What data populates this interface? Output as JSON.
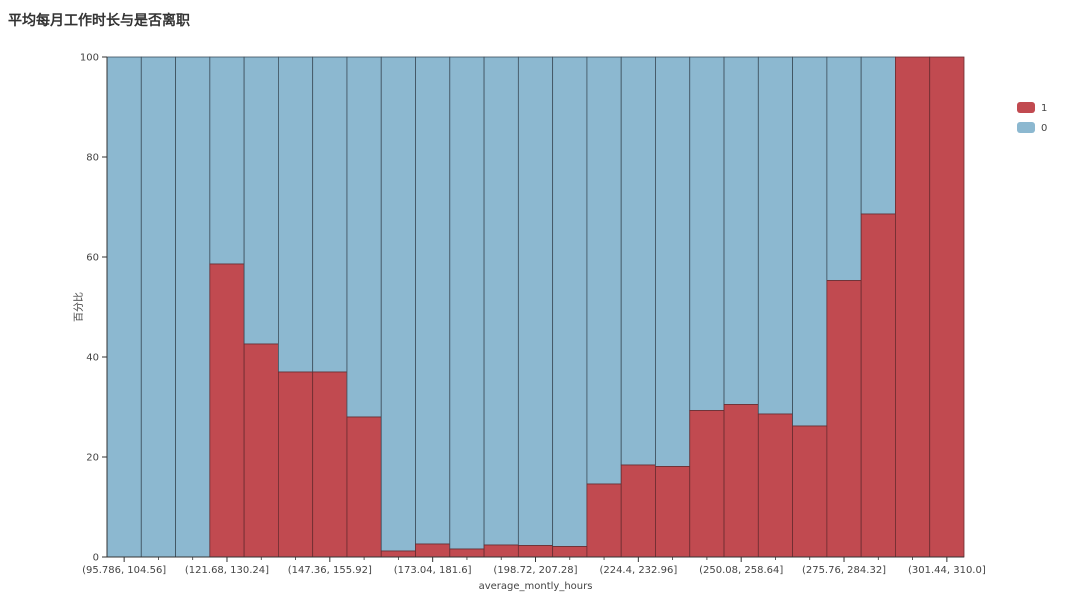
{
  "chart_data": {
    "type": "bar",
    "stacked": true,
    "normalized_percent": true,
    "title": "平均每月工作时长与是否离职",
    "xlabel": "average_montly_hours",
    "ylabel": "百分比",
    "ylim": [
      0,
      100
    ],
    "yticks": [
      0,
      20,
      40,
      60,
      80,
      100
    ],
    "x_ticks": [
      "(95.786, 104.56]",
      "(121.68, 130.24]",
      "(147.36, 155.92]",
      "(173.04, 181.6]",
      "(198.72, 207.28]",
      "(224.4, 232.96]",
      "(250.08, 258.64]",
      "(275.76, 284.32]",
      "(301.44, 310.0]"
    ],
    "bin_count": 25,
    "legend_position": "top-right",
    "series": [
      {
        "name": "1",
        "color": "#c14a50",
        "values": [
          0,
          0,
          0,
          58.6,
          42.6,
          37.0,
          37.0,
          28.0,
          1.2,
          2.6,
          1.6,
          2.4,
          2.3,
          2.1,
          14.6,
          18.4,
          18.1,
          29.3,
          30.5,
          28.6,
          26.2,
          55.3,
          68.6,
          100,
          100
        ]
      },
      {
        "name": "0",
        "color": "#8cb8d0",
        "values": [
          100,
          100,
          100,
          41.4,
          57.4,
          63.0,
          63.0,
          72.0,
          98.8,
          97.4,
          98.4,
          97.6,
          97.7,
          97.9,
          85.4,
          81.6,
          81.9,
          70.7,
          69.5,
          71.4,
          73.8,
          44.7,
          31.4,
          0,
          0
        ]
      }
    ]
  }
}
